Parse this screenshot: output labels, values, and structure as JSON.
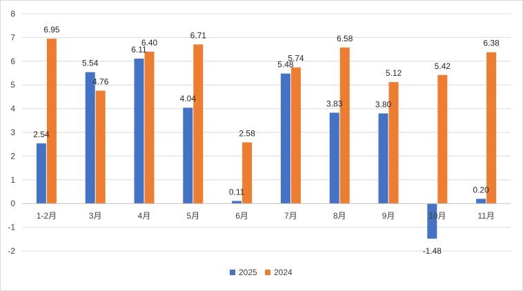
{
  "chart_data": {
    "type": "bar",
    "title": "",
    "xlabel": "",
    "ylabel": "",
    "categories": [
      "1-2月",
      "3月",
      "4月",
      "5月",
      "6月",
      "7月",
      "8月",
      "9月",
      "10月",
      "11月"
    ],
    "series": [
      {
        "name": "2025",
        "color": "#4472C4",
        "values": [
          2.54,
          5.54,
          6.11,
          4.04,
          0.11,
          5.48,
          3.83,
          3.8,
          -1.48,
          0.2
        ],
        "labels": [
          "2.54",
          "5.54",
          "6.11",
          "4.04",
          "0.11",
          "5.48",
          "3.83",
          "3.80",
          "-1.48",
          "0.20"
        ]
      },
      {
        "name": "2024",
        "color": "#ED7D31",
        "values": [
          6.95,
          4.76,
          6.4,
          6.71,
          2.58,
          5.74,
          6.58,
          5.12,
          5.42,
          6.38
        ],
        "labels": [
          "6.95",
          "4.76",
          "6.40",
          "6.71",
          "2.58",
          "5.74",
          "6.58",
          "5.12",
          "5.42",
          "6.38"
        ]
      }
    ],
    "ylim": [
      -2,
      8
    ],
    "yticks": [
      "-2",
      "-1",
      "0",
      "1",
      "2",
      "3",
      "4",
      "5",
      "6",
      "7",
      "8"
    ],
    "grid": true,
    "legend_position": "bottom"
  }
}
